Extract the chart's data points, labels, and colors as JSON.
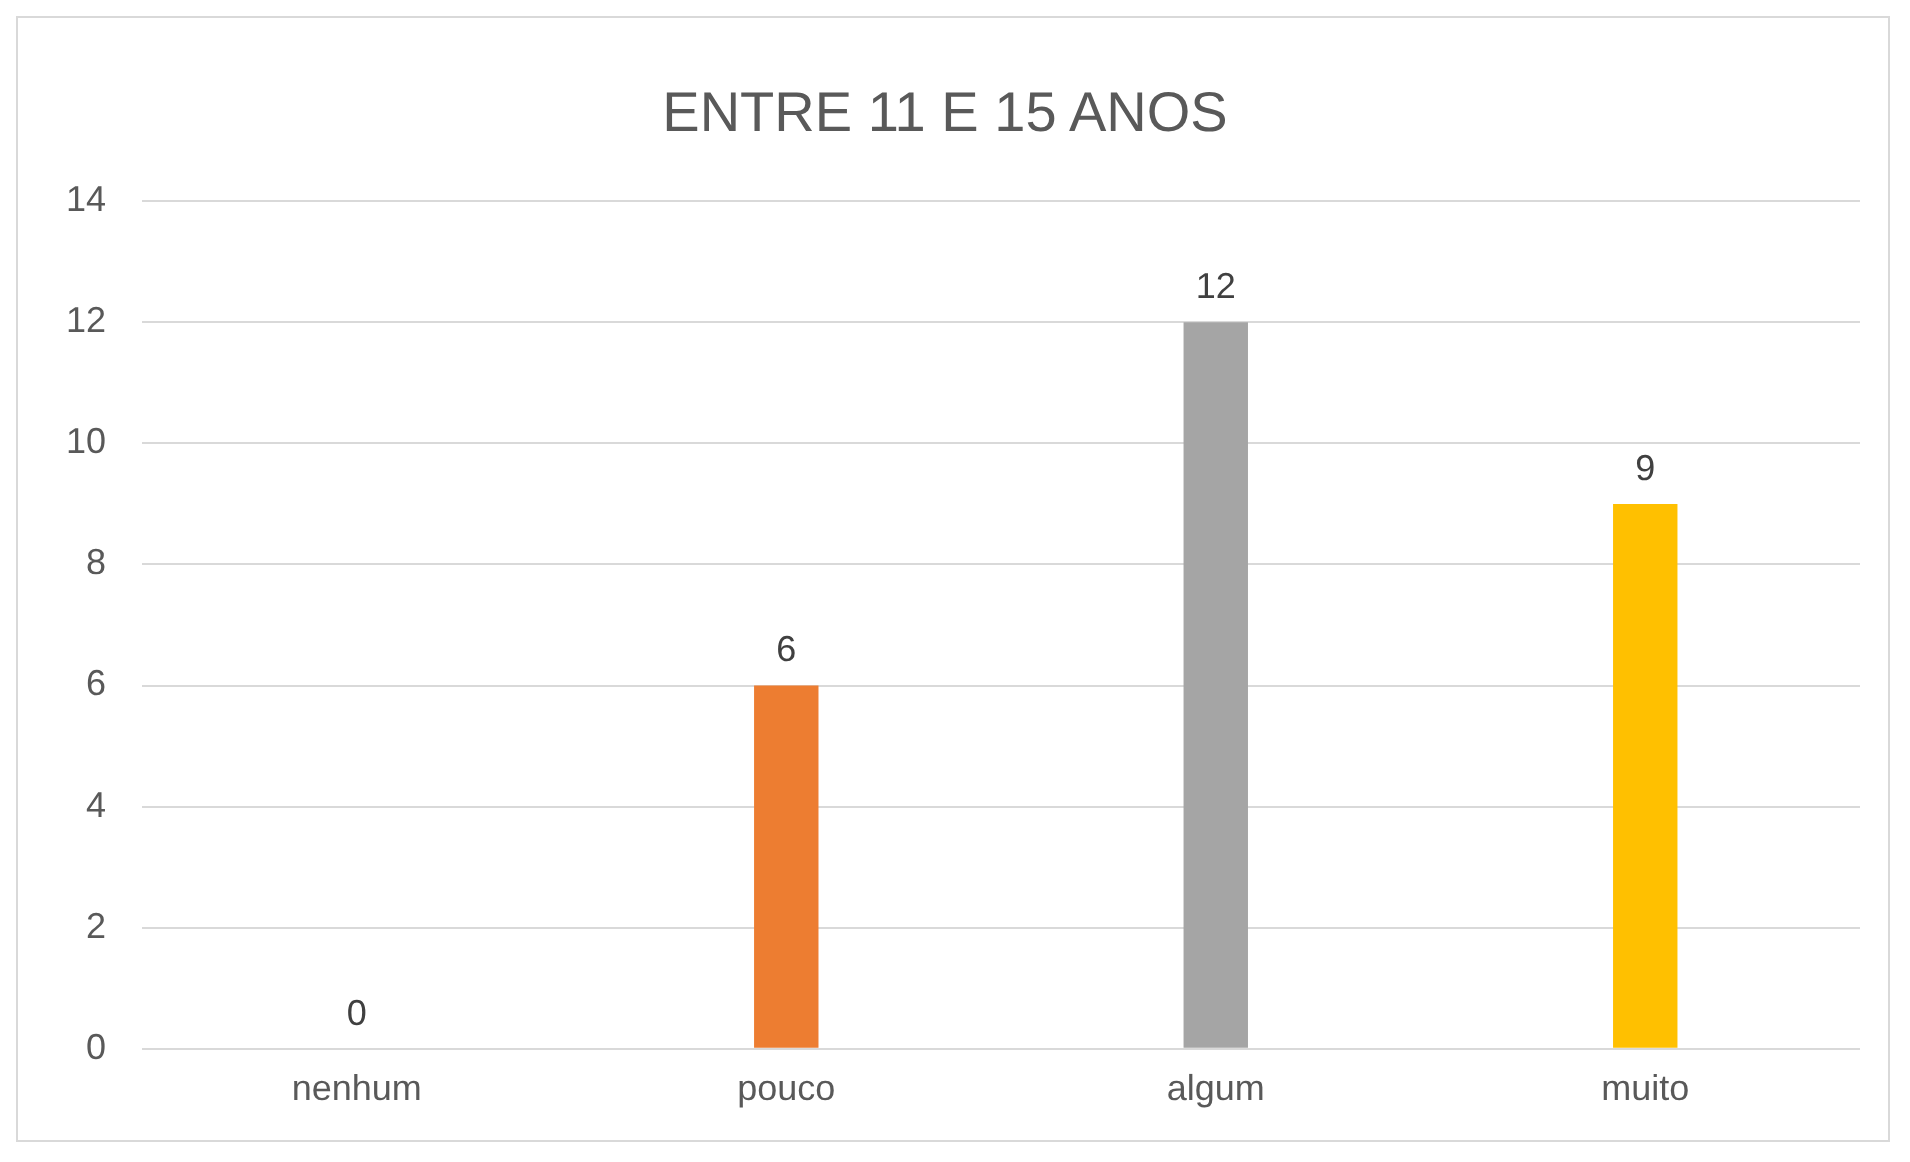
{
  "chart_data": {
    "type": "bar",
    "title": "ENTRE 11 E 15 ANOS",
    "categories": [
      "nenhum",
      "pouco",
      "algum",
      "muito"
    ],
    "values": [
      0,
      6,
      12,
      9
    ],
    "colors": [
      "#4472c4",
      "#ed7d31",
      "#a5a5a5",
      "#ffc000"
    ],
    "ylim": [
      0,
      14
    ],
    "yticks": [
      0,
      2,
      4,
      6,
      8,
      10,
      12,
      14
    ],
    "grid": "y",
    "data_labels": true,
    "legend": false
  }
}
